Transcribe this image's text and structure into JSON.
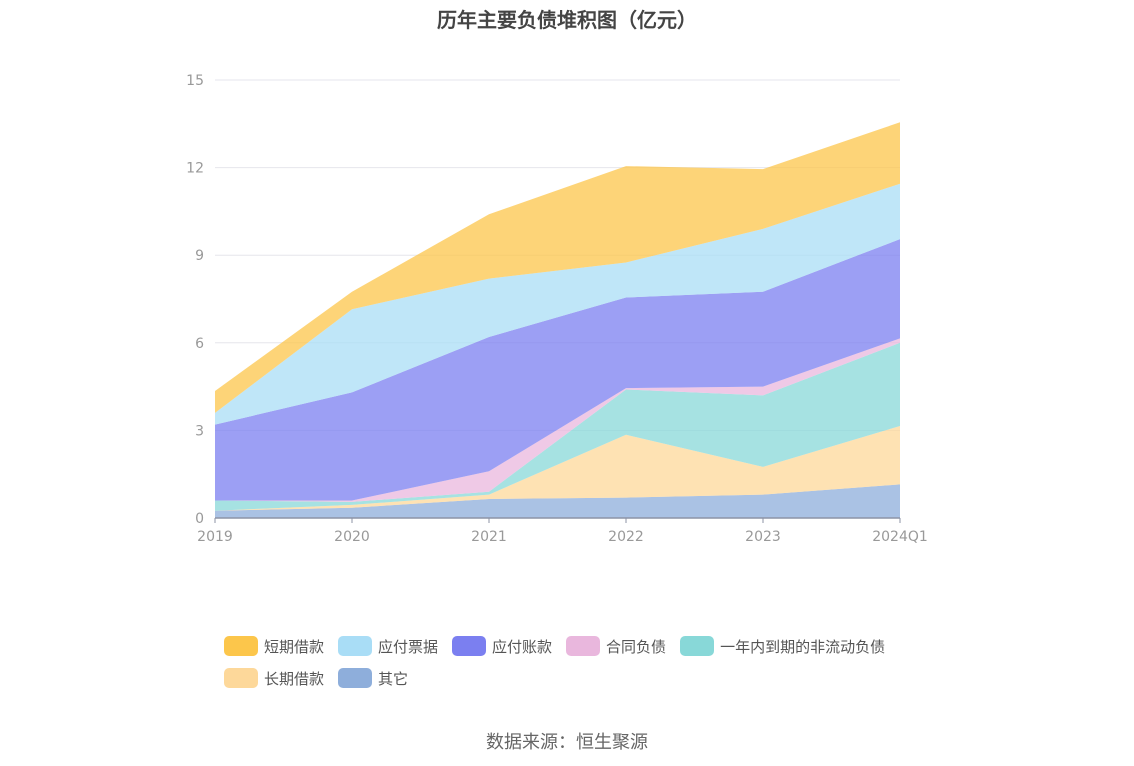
{
  "chart_data": {
    "type": "area",
    "stacked": true,
    "title": "历年主要负债堆积图（亿元）",
    "categories": [
      "2019",
      "2020",
      "2021",
      "2022",
      "2023",
      "2024Q1"
    ],
    "ylim": [
      0,
      15
    ],
    "yticks": [
      "0",
      "3",
      "6",
      "9",
      "12",
      "15"
    ],
    "grid": true,
    "legend_position": "bottom",
    "series": [
      {
        "name": "其它",
        "color": "#8eaedb",
        "values": [
          0.25,
          0.35,
          0.65,
          0.7,
          0.8,
          1.15
        ]
      },
      {
        "name": "长期借款",
        "color": "#fdd89a",
        "values": [
          0.0,
          0.1,
          0.15,
          2.15,
          0.95,
          2.0
        ]
      },
      {
        "name": "一年内到期的非流动负债",
        "color": "#88d8d8",
        "values": [
          0.35,
          0.1,
          0.1,
          1.55,
          2.45,
          2.85
        ]
      },
      {
        "name": "合同负债",
        "color": "#e9b7dd",
        "values": [
          0.0,
          0.05,
          0.7,
          0.05,
          0.3,
          0.15
        ]
      },
      {
        "name": "应付账款",
        "color": "#7b7ff0",
        "values": [
          2.6,
          3.7,
          4.6,
          3.1,
          3.25,
          3.4
        ]
      },
      {
        "name": "应付票据",
        "color": "#a9ddf6",
        "values": [
          0.4,
          2.85,
          2.0,
          1.2,
          2.15,
          1.9
        ]
      },
      {
        "name": "短期借款",
        "color": "#fcc64b",
        "values": [
          0.75,
          0.6,
          2.2,
          3.3,
          2.05,
          2.1
        ]
      }
    ],
    "legend_order": [
      "短期借款",
      "应付票据",
      "应付账款",
      "合同负债",
      "一年内到期的非流动负债",
      "长期借款",
      "其它"
    ]
  },
  "source": "数据来源：恒生聚源"
}
